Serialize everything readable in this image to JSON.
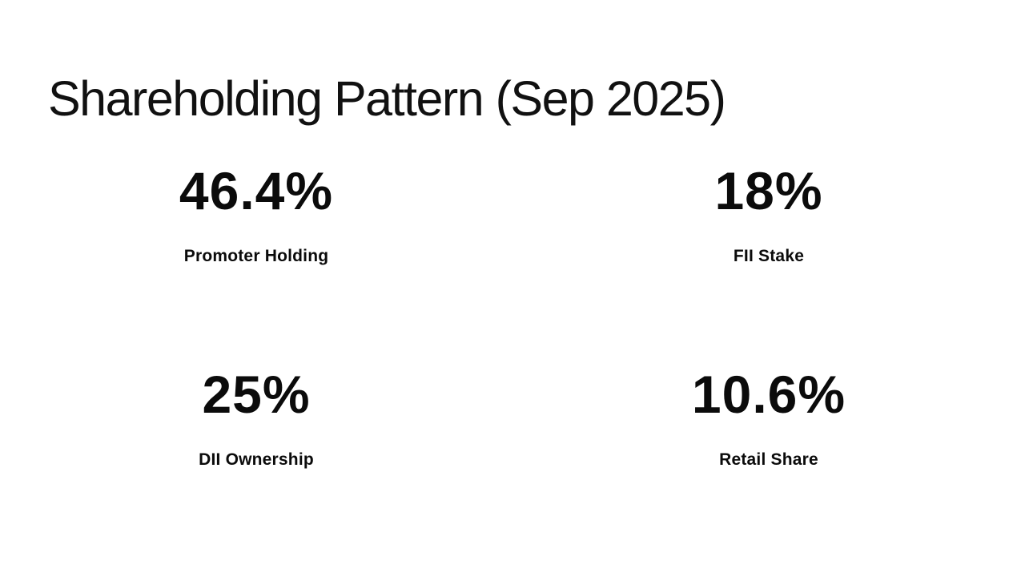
{
  "slide": {
    "title": "Shareholding Pattern (Sep 2025)",
    "colors": {
      "background": "#ffffff",
      "text": "#111111"
    },
    "stats": [
      {
        "value": "46.4%",
        "label": "Promoter Holding"
      },
      {
        "value": "18%",
        "label": "FII Stake"
      },
      {
        "value": "25%",
        "label": "DII Ownership"
      },
      {
        "value": "10.6%",
        "label": "Retail Share"
      }
    ]
  }
}
